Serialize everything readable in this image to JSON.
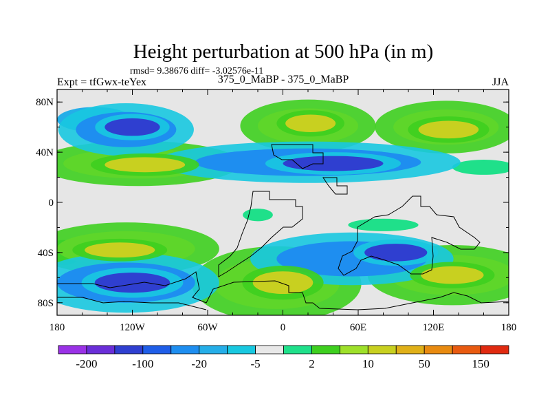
{
  "chart_data": {
    "type": "heatmap",
    "title": "Height perturbation at 500 hPa (in m)",
    "stats_line": "rmsd= 9.38676 diff= -3.02576e-11",
    "left_label": "Expt = tfGwx-teYex",
    "center_label": "375_0_MaBP - 375_0_MaBP",
    "right_label": "JJA",
    "x_ticks": [
      "180",
      "120W",
      "60W",
      "0",
      "60E",
      "120E",
      "180"
    ],
    "x_tick_values": [
      -180,
      -120,
      -60,
      0,
      60,
      120,
      180
    ],
    "y_ticks": [
      "80N",
      "40N",
      "0",
      "40S",
      "80S"
    ],
    "y_tick_values": [
      80,
      40,
      0,
      -40,
      -80
    ],
    "xlim": [
      -180,
      180
    ],
    "ylim": [
      -90,
      90
    ],
    "colorbar_labels": [
      "-200",
      "-100",
      "-20",
      "-5",
      "2",
      "10",
      "50",
      "150"
    ],
    "colorbar_colors": [
      "#9a32e6",
      "#6a2ed8",
      "#2f3fd0",
      "#1f5ee8",
      "#1e8ef0",
      "#25aee8",
      "#18c8e0",
      "#e8e8e8",
      "#1fe08a",
      "#3ecf1f",
      "#9ee02a",
      "#c8d020",
      "#e0b018",
      "#e88a10",
      "#e85a10",
      "#e02a10"
    ],
    "contour_features": [
      {
        "lon": -125,
        "lat": 58,
        "rx": 40,
        "ry": 14,
        "level": -20
      },
      {
        "lon": -120,
        "lat": 60,
        "rx": 22,
        "ry": 7,
        "level": -50
      },
      {
        "lon": -150,
        "lat": 66,
        "rx": 30,
        "ry": 10,
        "level": -5
      },
      {
        "lon": -115,
        "lat": 31,
        "rx": 60,
        "ry": 12,
        "level": 10
      },
      {
        "lon": -110,
        "lat": 30,
        "rx": 32,
        "ry": 6,
        "level": 30
      },
      {
        "lon": 20,
        "lat": 61,
        "rx": 40,
        "ry": 14,
        "level": 10
      },
      {
        "lon": 22,
        "lat": 63,
        "rx": 20,
        "ry": 7,
        "level": 30
      },
      {
        "lon": 130,
        "lat": 60,
        "rx": 42,
        "ry": 14,
        "level": 10
      },
      {
        "lon": 132,
        "lat": 58,
        "rx": 24,
        "ry": 7,
        "level": 30
      },
      {
        "lon": 20,
        "lat": 32,
        "rx": 90,
        "ry": 11,
        "level": -20
      },
      {
        "lon": 40,
        "lat": 31,
        "rx": 40,
        "ry": 6,
        "level": -50
      },
      {
        "lon": -125,
        "lat": -37,
        "rx": 55,
        "ry": 14,
        "level": 10
      },
      {
        "lon": -130,
        "lat": -38,
        "rx": 28,
        "ry": 6,
        "level": 30
      },
      {
        "lon": -125,
        "lat": -64,
        "rx": 55,
        "ry": 16,
        "level": -20
      },
      {
        "lon": -120,
        "lat": -64,
        "rx": 30,
        "ry": 8,
        "level": -50
      },
      {
        "lon": -5,
        "lat": -65,
        "rx": 50,
        "ry": 20,
        "level": 10
      },
      {
        "lon": 0,
        "lat": -64,
        "rx": 24,
        "ry": 9,
        "level": 30
      },
      {
        "lon": 55,
        "lat": -45,
        "rx": 60,
        "ry": 14,
        "level": -20
      },
      {
        "lon": 90,
        "lat": -40,
        "rx": 25,
        "ry": 7,
        "level": -50
      },
      {
        "lon": 135,
        "lat": -58,
        "rx": 50,
        "ry": 16,
        "level": 10
      },
      {
        "lon": 135,
        "lat": -58,
        "rx": 25,
        "ry": 7,
        "level": 30
      },
      {
        "lon": 80,
        "lat": -18,
        "rx": 28,
        "ry": 5,
        "level": 5
      },
      {
        "lon": -20,
        "lat": -10,
        "rx": 12,
        "ry": 5,
        "level": 5
      },
      {
        "lon": 160,
        "lat": 28,
        "rx": 25,
        "ry": 6,
        "level": 5
      },
      {
        "lon": -175,
        "lat": -40,
        "rx": 15,
        "ry": 10,
        "level": 5
      }
    ]
  }
}
